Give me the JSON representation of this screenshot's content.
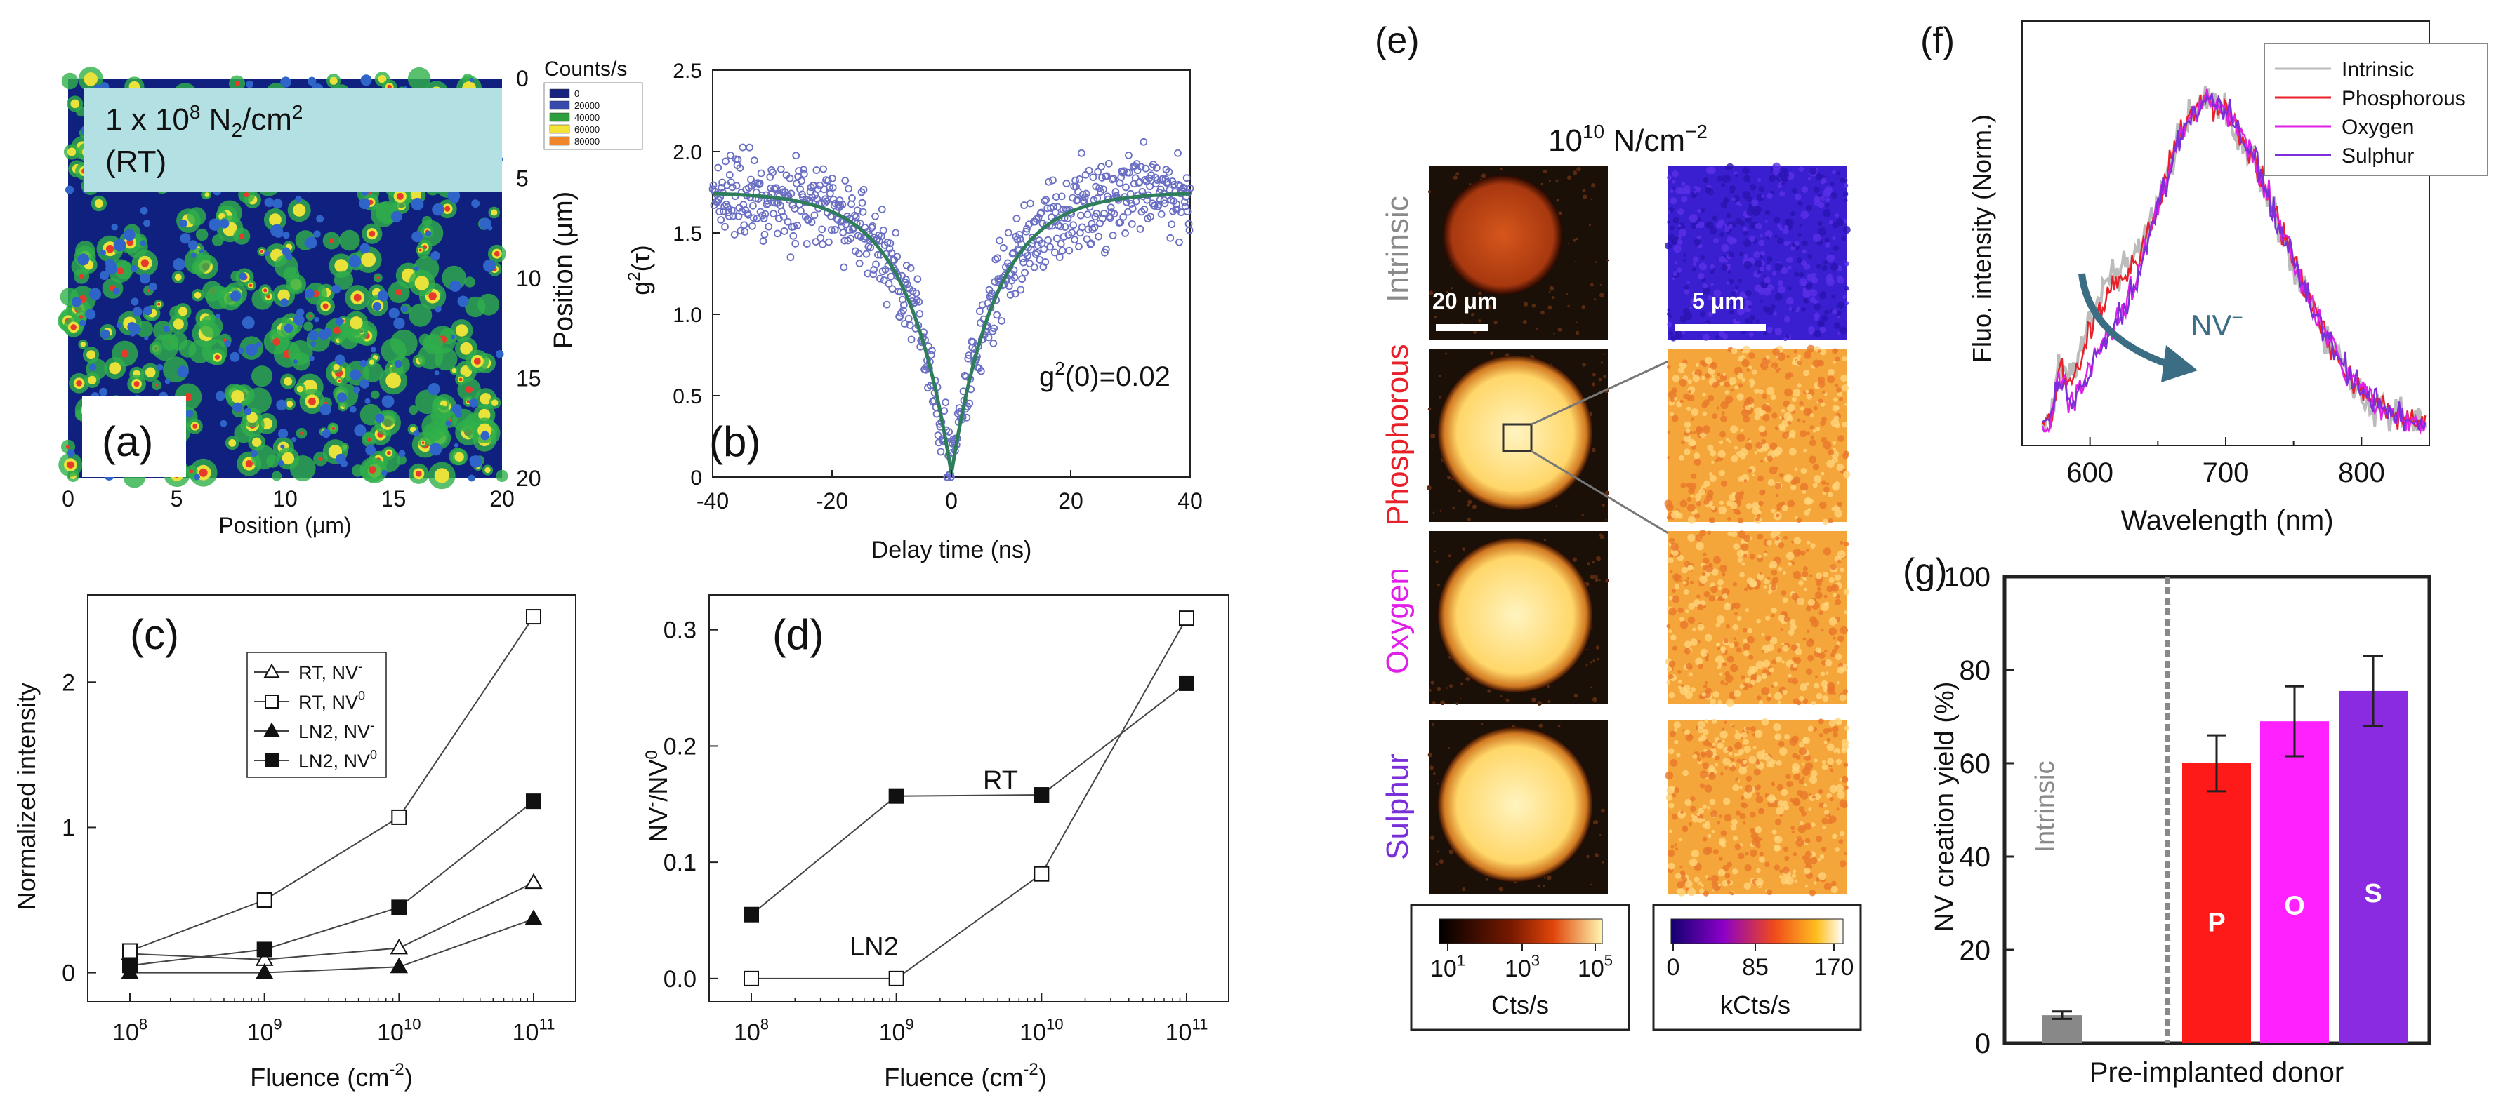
{
  "panel_labels": {
    "a": "(a)",
    "b": "(b)",
    "c": "(c)",
    "d": "(d)",
    "e": "(e)",
    "f": "(f)",
    "g": "(g)"
  },
  "chart_data": [
    {
      "id": "a",
      "type": "heatmap",
      "title": "1 x 10⁸ N₂/cm² (RT)",
      "title_line1": "1 x 10",
      "title_sup": "8",
      "title_mid": " N",
      "title_sub": "2",
      "title_end": "/cm",
      "title_sup2": "2",
      "title_line2": "(RT)",
      "xlabel": "Position (μm)",
      "ylabel": "Position (μm)",
      "xlim": [
        0,
        20
      ],
      "ylim": [
        0,
        20
      ],
      "y_inverted": true,
      "y_axis_side": "right",
      "xticks": [
        "0",
        "5",
        "10",
        "15",
        "20"
      ],
      "yticks": [
        "0",
        "5",
        "10",
        "15",
        "20"
      ],
      "colorbar": {
        "title": "Counts/s",
        "labels": [
          "0",
          "20000",
          "40000",
          "60000",
          "80000"
        ],
        "colors": [
          "#1a237e",
          "#3949ab",
          "#2e9e3e",
          "#f4e43a",
          "#f0862a"
        ]
      }
    },
    {
      "id": "b",
      "type": "scatter",
      "xlabel": "Delay time (ns)",
      "ylabel": "g²(τ)",
      "ylabel_base": "g",
      "ylabel_sup": "2",
      "ylabel_end": "(τ)",
      "xlim": [
        -40,
        40
      ],
      "ylim": [
        0,
        2.5
      ],
      "xticks": [
        "-40",
        "-20",
        "0",
        "20",
        "40"
      ],
      "yticks": [
        "0",
        "0.5",
        "1.0",
        "1.5",
        "2.0",
        "2.5"
      ],
      "annotation": "g²(0)=0.02",
      "annotation_base": "g",
      "annotation_sup": "2",
      "annotation_end": "(0)=0.02",
      "fit": {
        "form": "1 + a - (1+a) exp(-|t|/tau)",
        "plateau": 1.75,
        "g0": 0.02,
        "tau_ns": 7.5
      },
      "point_color": "#6a6fc4",
      "fit_color": "#2e7d5b"
    },
    {
      "id": "c",
      "type": "line",
      "x_scale": "log",
      "xlabel": "Fluence (cm⁻²)",
      "xlabel_base": "Fluence (cm",
      "xlabel_sup": "-2",
      "xlabel_end": ")",
      "ylabel": "Normalized intensity",
      "x": [
        100000000.0,
        1000000000.0,
        10000000000.0,
        100000000000.0
      ],
      "ylim": [
        -0.2,
        2.6
      ],
      "xticks": [
        {
          "base": "10",
          "exp": "8"
        },
        {
          "base": "10",
          "exp": "9"
        },
        {
          "base": "10",
          "exp": "10"
        },
        {
          "base": "10",
          "exp": "11"
        }
      ],
      "yticks": [
        "0",
        "1",
        "2"
      ],
      "legend_position": "top-center",
      "series": [
        {
          "name": "RT, NV⁻",
          "name_base": "RT, NV",
          "name_sup": "-",
          "marker": "triangle-open",
          "values": [
            0.13,
            0.09,
            0.17,
            0.62
          ]
        },
        {
          "name": "RT, NV⁰",
          "name_base": "RT, NV",
          "name_sup": "0",
          "marker": "square-open",
          "values": [
            0.15,
            0.5,
            1.07,
            2.45
          ]
        },
        {
          "name": "LN2, NV⁻",
          "name_base": "LN2, NV",
          "name_sup": "-",
          "marker": "triangle-filled",
          "values": [
            0.0,
            0.0,
            0.04,
            0.37
          ]
        },
        {
          "name": "LN2, NV⁰",
          "name_base": "LN2, NV",
          "name_sup": "0",
          "marker": "square-filled",
          "values": [
            0.05,
            0.16,
            0.45,
            1.18
          ]
        }
      ]
    },
    {
      "id": "d",
      "type": "line",
      "x_scale": "log",
      "xlabel": "Fluence (cm⁻²)",
      "xlabel_base": "Fluence (cm",
      "xlabel_sup": "-2",
      "xlabel_end": ")",
      "ylabel": "NV⁻/NV⁰",
      "ylabel_a": "NV",
      "ylabel_a_sup": "-",
      "ylabel_b": "/NV",
      "ylabel_b_sup": "0",
      "x": [
        100000000.0,
        1000000000.0,
        10000000000.0,
        100000000000.0
      ],
      "ylim": [
        -0.02,
        0.33
      ],
      "xticks": [
        {
          "base": "10",
          "exp": "8"
        },
        {
          "base": "10",
          "exp": "9"
        },
        {
          "base": "10",
          "exp": "10"
        },
        {
          "base": "10",
          "exp": "11"
        }
      ],
      "yticks": [
        "0.0",
        "0.1",
        "0.2",
        "0.3"
      ],
      "series": [
        {
          "name": "RT",
          "marker": "square-filled",
          "values": [
            0.055,
            0.157,
            0.158,
            0.254
          ]
        },
        {
          "name": "LN2",
          "marker": "square-open",
          "values": [
            0.0,
            0.0,
            0.09,
            0.31
          ]
        }
      ]
    },
    {
      "id": "e",
      "type": "heatmap",
      "title": "10¹⁰ N/cm⁻²",
      "title_base": "10",
      "title_sup": "10",
      "title_end": " N/cm",
      "title_sup2": "−2",
      "rows": [
        {
          "label": "Intrinsic",
          "color": "#8a8a8a"
        },
        {
          "label": "Phosphorous",
          "color": "#e8202a"
        },
        {
          "label": "Oxygen",
          "color": "#e020e8"
        },
        {
          "label": "Sulphur",
          "color": "#7b2fd8"
        }
      ],
      "scalebars": [
        "20 μm",
        "5 μm"
      ],
      "colorbar_left": {
        "label": "Cts/s",
        "ticks": [
          {
            "base": "10",
            "exp": "1"
          },
          {
            "base": "10",
            "exp": "3"
          },
          {
            "base": "10",
            "exp": "5"
          }
        ]
      },
      "colorbar_right": {
        "label": "kCts/s",
        "ticks": [
          "0",
          "85",
          "170"
        ]
      }
    },
    {
      "id": "f",
      "type": "line",
      "xlabel": "Wavelength (nm)",
      "ylabel": "Fluo. intensity (Norm.)",
      "xlim": [
        550,
        850
      ],
      "xticks": [
        "600",
        "700",
        "800"
      ],
      "annotation": "NV⁻",
      "annotation_base": "NV",
      "annotation_sup": "−",
      "legend_position": "top-right",
      "series": [
        {
          "name": "Intrinsic",
          "color": "#bbbbbb"
        },
        {
          "name": "Phosphorous",
          "color": "#e8202a"
        },
        {
          "name": "Oxygen",
          "color": "#e020e8"
        },
        {
          "name": "Sulphur",
          "color": "#7b2fd8"
        }
      ]
    },
    {
      "id": "g",
      "type": "bar",
      "xlabel": "Pre-implanted donor",
      "ylabel": "NV creation yield (%)",
      "ylim": [
        0,
        100
      ],
      "yticks": [
        "0",
        "20",
        "40",
        "60",
        "80",
        "100"
      ],
      "categories": [
        "Intrinsic",
        "P",
        "O",
        "S"
      ],
      "values": [
        6,
        60,
        69,
        75.5
      ],
      "errors": [
        0.8,
        6,
        7.5,
        7.5
      ],
      "colors": [
        "#888888",
        "#ff1a1a",
        "#ff22ff",
        "#8a2be2"
      ],
      "category_label_intrinsic": "Intrinsic"
    }
  ]
}
